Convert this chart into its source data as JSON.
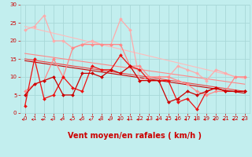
{
  "xlabel": "Vent moyen/en rafales ( km/h )",
  "xlim": [
    -0.5,
    23.5
  ],
  "ylim": [
    0,
    30
  ],
  "xticks": [
    0,
    1,
    2,
    3,
    4,
    5,
    6,
    7,
    8,
    9,
    10,
    11,
    12,
    13,
    14,
    15,
    16,
    17,
    18,
    19,
    20,
    21,
    22,
    23
  ],
  "yticks": [
    0,
    5,
    10,
    15,
    20,
    25,
    30
  ],
  "bg_color": "#c2eeee",
  "grid_color": "#a8d8d8",
  "series": [
    {
      "x": [
        0,
        1,
        2,
        3,
        4,
        5,
        6,
        7,
        8,
        9,
        10,
        11,
        12,
        13,
        14,
        15,
        16,
        17,
        18,
        19,
        20,
        21,
        22,
        23
      ],
      "y": [
        5,
        8,
        9,
        10,
        5,
        5,
        11,
        11,
        10,
        12,
        11,
        13,
        9,
        9,
        9,
        3,
        4,
        6,
        5,
        6,
        7,
        6,
        6,
        6
      ],
      "color": "#cc0000",
      "linewidth": 0.9,
      "marker": "D",
      "markersize": 2.0,
      "zorder": 6
    },
    {
      "x": [
        0,
        1,
        2,
        3,
        4,
        5,
        6,
        7,
        8,
        9,
        10,
        11,
        12,
        13,
        14,
        15,
        16,
        17,
        18,
        19,
        20,
        21,
        22,
        23
      ],
      "y": [
        2,
        15,
        4,
        5,
        10,
        7,
        6,
        13,
        12,
        12,
        16,
        13,
        12,
        9,
        9,
        9,
        3,
        4,
        1,
        6,
        7,
        6,
        6,
        6
      ],
      "color": "#ee1111",
      "linewidth": 0.9,
      "marker": "D",
      "markersize": 2.0,
      "zorder": 5
    },
    {
      "x": [
        0,
        1,
        2,
        3,
        4,
        5,
        6,
        7,
        8,
        9,
        10,
        11,
        12,
        13,
        14,
        15,
        16,
        17,
        18,
        19,
        20,
        21,
        22,
        23
      ],
      "y": [
        6,
        8,
        9,
        15,
        10,
        18,
        19,
        19,
        19,
        19,
        19,
        13,
        13,
        10,
        10,
        10,
        9,
        8,
        6,
        5,
        6,
        6,
        10,
        10
      ],
      "color": "#ff8888",
      "linewidth": 0.9,
      "marker": "D",
      "markersize": 2.0,
      "zorder": 4
    },
    {
      "x": [
        0,
        1,
        2,
        3,
        4,
        5,
        6,
        7,
        8,
        9,
        10,
        11,
        12,
        13,
        14,
        15,
        16,
        17,
        18,
        19,
        20,
        21,
        22,
        23
      ],
      "y": [
        23,
        24,
        27,
        20,
        20,
        18,
        19,
        20,
        19,
        19,
        26,
        23,
        9,
        10,
        10,
        10,
        13,
        12,
        11,
        9,
        12,
        11,
        10,
        10
      ],
      "color": "#ffaaaa",
      "linewidth": 0.9,
      "marker": "D",
      "markersize": 2.0,
      "zorder": 3
    },
    {
      "x": [
        0,
        23
      ],
      "y": [
        14.5,
        5.5
      ],
      "color": "#cc0000",
      "linewidth": 0.8,
      "marker": null,
      "zorder": 2,
      "linestyle": "-"
    },
    {
      "x": [
        0,
        23
      ],
      "y": [
        15.0,
        6.0
      ],
      "color": "#ee4444",
      "linewidth": 0.8,
      "marker": null,
      "zorder": 2,
      "linestyle": "-"
    },
    {
      "x": [
        0,
        23
      ],
      "y": [
        16.5,
        8.0
      ],
      "color": "#ff8888",
      "linewidth": 0.8,
      "marker": null,
      "zorder": 2,
      "linestyle": "-"
    },
    {
      "x": [
        0,
        23
      ],
      "y": [
        24.0,
        9.5
      ],
      "color": "#ffbbbb",
      "linewidth": 0.8,
      "marker": null,
      "zorder": 2,
      "linestyle": "-"
    }
  ],
  "arrow_color": "#cc0000",
  "xlabel_color": "#cc0000",
  "xlabel_fontsize": 7,
  "tick_fontsize": 5,
  "tick_color": "#cc0000"
}
